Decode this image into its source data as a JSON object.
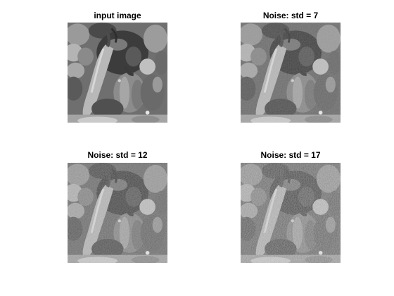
{
  "figure": {
    "panels": [
      {
        "title": "input image",
        "image": "peppers-grayscale",
        "noise_std": 0
      },
      {
        "title": "Noise: std = 7",
        "image": "peppers-grayscale",
        "noise_std": 7
      },
      {
        "title": "Noise: std = 12",
        "image": "peppers-grayscale",
        "noise_std": 12
      },
      {
        "title": "Noise: std = 17",
        "image": "peppers-grayscale",
        "noise_std": 17
      }
    ]
  }
}
